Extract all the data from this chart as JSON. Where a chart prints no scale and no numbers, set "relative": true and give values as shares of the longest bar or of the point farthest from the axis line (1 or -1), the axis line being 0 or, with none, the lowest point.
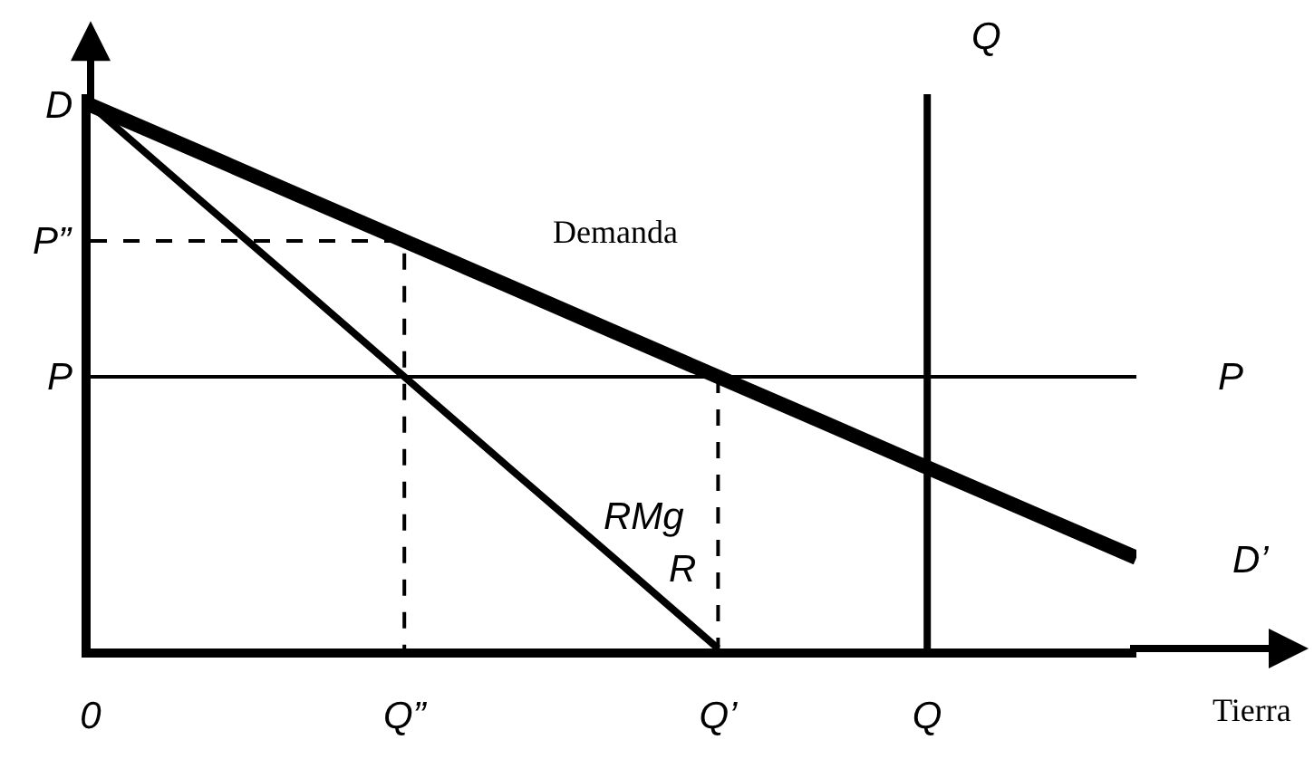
{
  "chart_data": {
    "type": "line",
    "relative": true,
    "xlabel": "Tierra",
    "categories": [
      "0",
      null,
      null,
      "Q”",
      null,
      null,
      "Q’",
      null,
      "Q",
      null,
      null
    ],
    "series": [
      {
        "name": "Demanda",
        "color": "#000000",
        "values": [
          1,
          0.917,
          0.833,
          0.75,
          0.667,
          0.583,
          0.5,
          0.417,
          0.333,
          0.25,
          0.167
        ]
      },
      {
        "name": "RMg",
        "color": "#000000",
        "values": [
          1,
          0.833,
          0.667,
          0.5,
          0.333,
          0.167,
          0,
          null,
          null,
          null,
          null
        ]
      },
      {
        "color": "#000000",
        "x": [
          "0",
          "Q”",
          "Q”"
        ],
        "values": [
          0.75,
          0.75,
          0
        ],
        "line_style": "dashed"
      },
      {
        "color": "#000000",
        "x": [
          "Q’",
          "Q’"
        ],
        "values": [
          0.5,
          0
        ],
        "line_style": "dashed"
      }
    ],
    "ref_lines": [
      {
        "axis": "y",
        "value": 0.5,
        "label": "P",
        "color": "#000000"
      },
      {
        "axis": "x",
        "value": "Q",
        "label": "Q",
        "color": "#000000"
      }
    ],
    "annotations": [
      {
        "text": "D",
        "x": "0",
        "y": 1
      },
      {
        "text": "P”",
        "x": "0",
        "y": 0.75
      },
      {
        "text": "P",
        "x": "0",
        "y": 0.5
      },
      "R",
      "D’"
    ],
    "legend": false,
    "marker": "none",
    "line_style": "solid"
  }
}
